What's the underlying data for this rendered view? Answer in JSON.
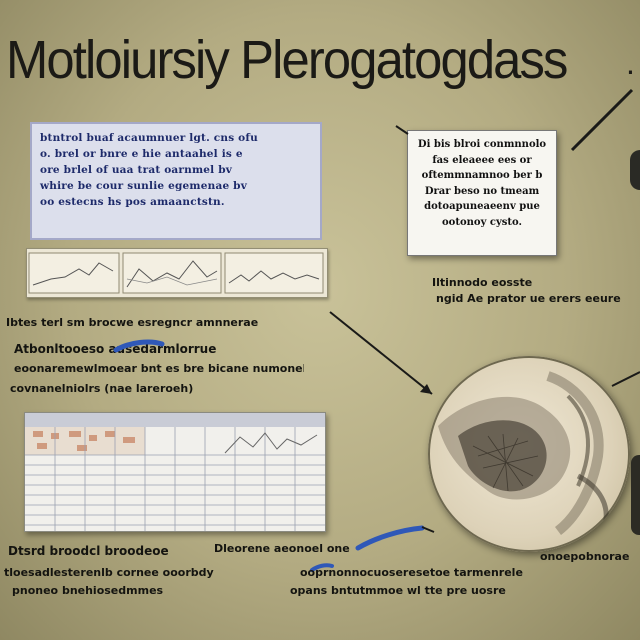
{
  "title": "Motloiursiy Plerogatogdass",
  "top_left_panel": {
    "lines": [
      "btntrol buaf acaumnuer lgt. cns ofu",
      "o. brel or bnre e hie antaahel is e",
      "ore brlel of uaa trat oarnmel bv",
      "whire be cour sunlie egemenae bv",
      "oo estecns hs pos amaanctstn."
    ]
  },
  "note_card": {
    "lines": [
      "Di bis blroi conmnnolo",
      "fas eleaeee ees or",
      "oftemmnamnoo ber b",
      "Drar beso no tmeam",
      "dotoapuneaeenv pue",
      "ootonoy cysto."
    ]
  },
  "captions": {
    "right_top_line1": "Iltinnodo eosste",
    "right_top_line2": "ngid Ae prator ue erers eeure",
    "left_mid_line1": "Ibtes terl sm brocwe esregncr amnnerae",
    "left_mid_line2": "Atbonltooeso ausedarmlorrue",
    "left_mid_line3": "eoonaremewlmoear bnt es bre bicane numonel",
    "left_mid_line4": "covnanelniolrs (nae lareroeh)",
    "bottom_left_line1": "Dtsrd broodcl broodeoe",
    "bottom_left_line2": "tloesadlesterenlb cornee ooorbdy",
    "bottom_left_line3": "pnoneo bnehiosedmmes",
    "bottom_mid_line1": "Dleorene aeonoel one",
    "bottom_mid_line2": "ooprnonnocuoseresetoe tarmenrele",
    "bottom_mid_line3": "opans bntutmmoe wl tte pre uosre",
    "bottom_right_line1": "onoepobnorae"
  },
  "colors": {
    "accent_blue": "#2f58b8",
    "arrow": "#1a1a18"
  }
}
